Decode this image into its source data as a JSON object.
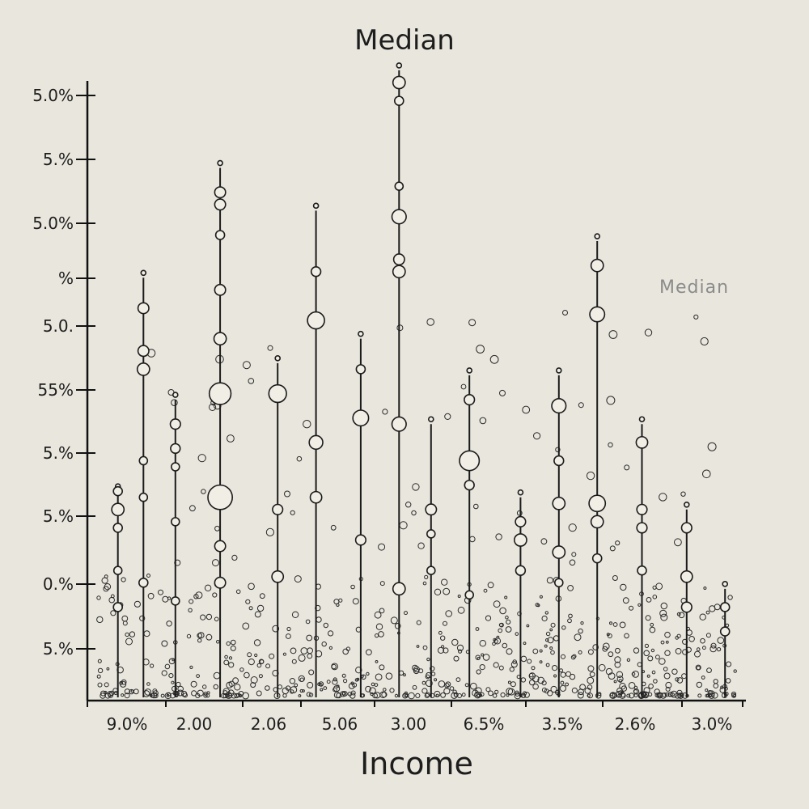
{
  "chart_data": {
    "type": "scatter",
    "title": "Median",
    "xlabel": "Income",
    "ylabel": "",
    "legend": {
      "label": "Median",
      "placement": "right"
    },
    "grid": false,
    "y_ticks": [
      "5.0%",
      "5.%",
      "5.0%",
      "%",
      "5.0.",
      "55%",
      "5.%",
      "5.%",
      "0.%",
      "5.%"
    ],
    "x_ticks": [
      "9.0%",
      "2.00",
      "2.06",
      "5.06",
      "3.00",
      "6.5%",
      "3.5%",
      "2.6%",
      "3.0%"
    ],
    "ylim": [
      0,
      100
    ],
    "series": [
      {
        "stems": [
          {
            "x": 3,
            "top": 33,
            "points": [
              {
                "y": 33,
                "r": 1.3
              },
              {
                "y": 30,
                "r": 1.8
              },
              {
                "y": 27,
                "r": 1.3
              },
              {
                "y": 20,
                "r": 1.2
              },
              {
                "y": 14,
                "r": 1.3
              }
            ]
          },
          {
            "x": 7,
            "top": 68,
            "points": [
              {
                "y": 63,
                "r": 1.6
              },
              {
                "y": 56,
                "r": 1.6
              },
              {
                "y": 53,
                "r": 1.8
              },
              {
                "y": 38,
                "r": 1.2
              },
              {
                "y": 32,
                "r": 1.2
              },
              {
                "y": 18,
                "r": 1.3
              }
            ]
          },
          {
            "x": 12,
            "top": 48,
            "points": [
              {
                "y": 44,
                "r": 1.5
              },
              {
                "y": 40,
                "r": 1.4
              },
              {
                "y": 37,
                "r": 1.2
              },
              {
                "y": 28,
                "r": 1.2
              },
              {
                "y": 15,
                "r": 1.2
              }
            ]
          },
          {
            "x": 19,
            "top": 86,
            "points": [
              {
                "y": 82,
                "r": 1.6
              },
              {
                "y": 80,
                "r": 1.6
              },
              {
                "y": 75,
                "r": 1.3
              },
              {
                "y": 66,
                "r": 1.6
              },
              {
                "y": 58,
                "r": 1.8
              },
              {
                "y": 49,
                "r": 3.2
              },
              {
                "y": 32,
                "r": 3.6
              },
              {
                "y": 24,
                "r": 1.6
              },
              {
                "y": 18,
                "r": 1.6
              }
            ]
          },
          {
            "x": 28,
            "top": 54,
            "points": [
              {
                "y": 49,
                "r": 2.6
              },
              {
                "y": 30,
                "r": 1.5
              },
              {
                "y": 19,
                "r": 1.7
              }
            ]
          },
          {
            "x": 34,
            "top": 79,
            "points": [
              {
                "y": 69,
                "r": 1.4
              },
              {
                "y": 61,
                "r": 2.5
              },
              {
                "y": 41,
                "r": 2.0
              },
              {
                "y": 32,
                "r": 1.7
              }
            ]
          },
          {
            "x": 41,
            "top": 58,
            "points": [
              {
                "y": 53,
                "r": 1.3
              },
              {
                "y": 45,
                "r": 2.3
              },
              {
                "y": 25,
                "r": 1.5
              }
            ]
          },
          {
            "x": 47,
            "top": 102,
            "points": [
              {
                "y": 100,
                "r": 1.8
              },
              {
                "y": 97,
                "r": 1.3
              },
              {
                "y": 83,
                "r": 1.2
              },
              {
                "y": 78,
                "r": 2.1
              },
              {
                "y": 71,
                "r": 1.6
              },
              {
                "y": 69,
                "r": 1.8
              },
              {
                "y": 44,
                "r": 2.1
              },
              {
                "y": 17,
                "r": 1.8
              }
            ]
          },
          {
            "x": 52,
            "top": 44,
            "points": [
              {
                "y": 30,
                "r": 1.6
              },
              {
                "y": 26,
                "r": 1.2
              },
              {
                "y": 20,
                "r": 1.2
              }
            ]
          },
          {
            "x": 58,
            "top": 52,
            "points": [
              {
                "y": 48,
                "r": 1.5
              },
              {
                "y": 38,
                "r": 2.9
              },
              {
                "y": 34,
                "r": 1.4
              },
              {
                "y": 16,
                "r": 1.2
              }
            ]
          },
          {
            "x": 66,
            "top": 32,
            "points": [
              {
                "y": 28,
                "r": 1.5
              },
              {
                "y": 25,
                "r": 1.8
              },
              {
                "y": 20,
                "r": 1.4
              }
            ]
          },
          {
            "x": 72,
            "top": 52,
            "points": [
              {
                "y": 47,
                "r": 2.1
              },
              {
                "y": 38,
                "r": 1.4
              },
              {
                "y": 31,
                "r": 1.8
              },
              {
                "y": 23,
                "r": 1.8
              },
              {
                "y": 18,
                "r": 1.2
              }
            ]
          },
          {
            "x": 78,
            "top": 74,
            "points": [
              {
                "y": 70,
                "r": 1.8
              },
              {
                "y": 62,
                "r": 2.2
              },
              {
                "y": 31,
                "r": 2.4
              },
              {
                "y": 28,
                "r": 1.8
              },
              {
                "y": 22,
                "r": 1.3
              }
            ]
          },
          {
            "x": 85,
            "top": 44,
            "points": [
              {
                "y": 41,
                "r": 1.7
              },
              {
                "y": 30,
                "r": 1.5
              },
              {
                "y": 27,
                "r": 1.5
              },
              {
                "y": 20,
                "r": 1.3
              }
            ]
          },
          {
            "x": 92,
            "top": 30,
            "points": [
              {
                "y": 27,
                "r": 1.5
              },
              {
                "y": 19,
                "r": 1.7
              },
              {
                "y": 14,
                "r": 1.5
              }
            ]
          },
          {
            "x": 98,
            "top": 17,
            "points": [
              {
                "y": 14,
                "r": 1.3
              },
              {
                "y": 10,
                "r": 1.3
              }
            ]
          }
        ]
      }
    ]
  }
}
